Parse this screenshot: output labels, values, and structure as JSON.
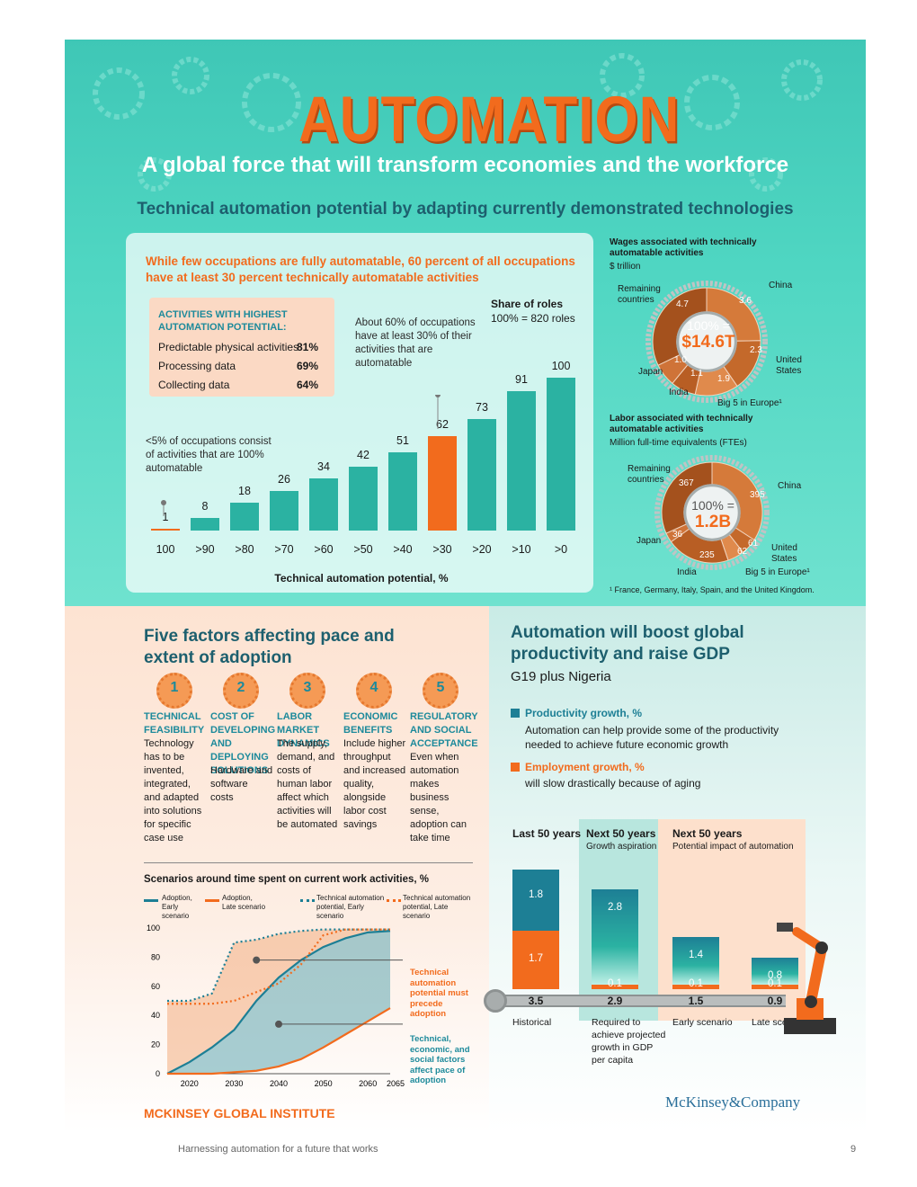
{
  "header": {
    "title": "AUTOMATION",
    "subtitle": "A global force that will transform economies and the workforce",
    "section_title": "Technical automation potential by adapting currently demonstrated technologies"
  },
  "occupations_card": {
    "headline": "While few occupations are fully automatable, 60 percent of all occupations have at least 30 percent technically automatable activities",
    "activities": {
      "title": "ACTIVITIES WITH HIGHEST AUTOMATION POTENTIAL:",
      "rows": [
        {
          "label": "Predictable physical activities",
          "value": "81%"
        },
        {
          "label": "Processing data",
          "value": "69%"
        },
        {
          "label": "Collecting data",
          "value": "64%"
        }
      ]
    },
    "annotation_60": "About 60% of occupations have at least 30% of their activities that are automatable",
    "annotation_5": "<5% of occupations consist of activities that are 100% automatable",
    "share_title": "Share of roles",
    "share_note": "100% = 820 roles",
    "xlabel": "Technical automation potential, %"
  },
  "chart_data": [
    {
      "type": "bar",
      "categories": [
        "100",
        ">90",
        ">80",
        ">70",
        ">60",
        ">50",
        ">40",
        ">30",
        ">20",
        ">10",
        ">0"
      ],
      "values": [
        1,
        8,
        18,
        26,
        34,
        42,
        51,
        62,
        73,
        91,
        100
      ],
      "highlight": [
        "100",
        ">30"
      ],
      "xlabel": "Technical automation potential, %",
      "ylabel": "Share of roles",
      "ylim": [
        0,
        100
      ]
    },
    {
      "type": "pie",
      "title": "Wages associated with technically automatable activities",
      "unit": "$ trillion",
      "total_label": "100% =",
      "total": "$14.6T",
      "slices": [
        {
          "name": "China",
          "value": 3.6
        },
        {
          "name": "United States",
          "value": 2.3
        },
        {
          "name": "Big 5 in Europe¹",
          "value": 1.9
        },
        {
          "name": "India",
          "value": 1.1
        },
        {
          "name": "Japan",
          "value": 1.0
        },
        {
          "name": "Remaining countries",
          "value": 4.7
        }
      ]
    },
    {
      "type": "pie",
      "title": "Labor associated with technically automatable activities",
      "unit": "Million full-time equivalents (FTEs)",
      "total_label": "100% =",
      "total": "1.2B",
      "slices": [
        {
          "name": "China",
          "value": 395
        },
        {
          "name": "United States",
          "value": 61
        },
        {
          "name": "Big 5 in Europe¹",
          "value": 62
        },
        {
          "name": "India",
          "value": 235
        },
        {
          "name": "Japan",
          "value": 36
        },
        {
          "name": "Remaining countries",
          "value": 367
        }
      ]
    },
    {
      "type": "line",
      "title": "Scenarios around time spent on current work activities, %",
      "x_ticks": [
        "2020",
        "2030",
        "2040",
        "2050",
        "2060",
        "2065"
      ],
      "y_ticks": [
        "0",
        "20",
        "40",
        "60",
        "80",
        "100"
      ],
      "ylim": [
        0,
        100
      ],
      "series": [
        {
          "name": "Adoption, Early scenario",
          "color": "#1d7f95",
          "style": "solid",
          "x": [
            2015,
            2020,
            2025,
            2030,
            2035,
            2040,
            2045,
            2050,
            2055,
            2060,
            2065
          ],
          "y": [
            0,
            8,
            18,
            30,
            50,
            66,
            78,
            87,
            93,
            97,
            98
          ]
        },
        {
          "name": "Adoption, Late scenario",
          "color": "#f26b1d",
          "style": "solid",
          "x": [
            2015,
            2020,
            2025,
            2030,
            2035,
            2040,
            2045,
            2050,
            2055,
            2060,
            2065
          ],
          "y": [
            0,
            0,
            0,
            1,
            2,
            5,
            10,
            18,
            27,
            36,
            45
          ]
        },
        {
          "name": "Technical automation potential, Early scenario",
          "color": "#1d7f95",
          "style": "dotted",
          "x": [
            2015,
            2020,
            2025,
            2030,
            2035,
            2040,
            2045,
            2050,
            2055,
            2060,
            2065
          ],
          "y": [
            50,
            50,
            55,
            90,
            92,
            96,
            98,
            99,
            99,
            99,
            99
          ]
        },
        {
          "name": "Technical automation potential, Late scenario",
          "color": "#f26b1d",
          "style": "dotted",
          "x": [
            2015,
            2020,
            2025,
            2030,
            2035,
            2040,
            2045,
            2050,
            2055,
            2060,
            2065
          ],
          "y": [
            48,
            48,
            48,
            50,
            56,
            62,
            75,
            95,
            99,
            99,
            99
          ]
        }
      ]
    },
    {
      "type": "bar",
      "title": "Automation will boost global productivity and raise GDP",
      "categories": [
        "Historical",
        "Required to achieve projected growth in GDP per capita",
        "Early scenario",
        "Late scenario"
      ],
      "series": [
        {
          "name": "Employment growth, %",
          "values": [
            1.7,
            0.1,
            0.1,
            0.1
          ]
        },
        {
          "name": "Productivity growth, %",
          "values": [
            1.8,
            2.8,
            1.4,
            0.8
          ]
        }
      ],
      "totals": [
        3.5,
        2.9,
        1.5,
        0.9
      ]
    }
  ],
  "wages_pie": {
    "title": "Wages associated with technically automatable activities",
    "unit": "$ trillion",
    "total_label": "100% =",
    "total": "$14.6T",
    "labels": {
      "remaining": "Remaining countries",
      "china": "China",
      "us": "United States",
      "big5": "Big 5 in Europe¹",
      "india": "India",
      "japan": "Japan"
    },
    "values": {
      "remaining": "4.7",
      "china": "3.6",
      "us": "2.3",
      "big5": "1.9",
      "india": "1.1",
      "japan": "1.0"
    }
  },
  "labor_pie": {
    "title": "Labor associated with technically automatable activities",
    "unit": "Million full-time equivalents (FTEs)",
    "total_label": "100% =",
    "total": "1.2B",
    "labels": {
      "remaining": "Remaining countries",
      "china": "China",
      "us": "United States",
      "big5": "Big 5 in Europe¹",
      "india": "India",
      "japan": "Japan"
    },
    "values": {
      "remaining": "367",
      "china": "395",
      "us": "61",
      "big5": "62",
      "india": "235",
      "japan": "36"
    },
    "footnote": "¹ France, Germany, Italy, Spain, and the United Kingdom."
  },
  "factors": {
    "title": "Five factors affecting pace and extent of adoption",
    "items": [
      {
        "num": "1",
        "title": "TECHNICAL FEASIBILITY",
        "text": "Technology has to be invented, integrated, and adapted into solutions for specific case use"
      },
      {
        "num": "2",
        "title": "COST OF DEVELOPING AND DEPLOYING SOLUTIONS",
        "text": "Hardware and software costs"
      },
      {
        "num": "3",
        "title": "LABOR MARKET DYNAMICS",
        "text": "The supply, demand, and costs of human labor affect which activities will be automated"
      },
      {
        "num": "4",
        "title": "ECONOMIC BENEFITS",
        "text": "Include higher throughput and increased quality, alongside labor cost savings"
      },
      {
        "num": "5",
        "title": "REGULATORY AND SOCIAL ACCEPTANCE",
        "text": "Even when automation makes business sense, adoption can take time"
      }
    ]
  },
  "scenarios": {
    "title": "Scenarios around time spent on current work activities, %",
    "legend": [
      "Adoption, Early scenario",
      "Adoption, Late scenario",
      "Technical automation potential, Early scenario",
      "Technical automation potential, Late scenario"
    ],
    "annotation_1": "Technical automation potential must precede adoption",
    "annotation_2": "Technical, economic, and social factors affect pace of adoption"
  },
  "gdp": {
    "title": "Automation will boost global productivity and raise GDP",
    "subtitle": "G19 plus Nigeria",
    "productivity_label": "Productivity growth, %",
    "productivity_text": "Automation can help provide some of the productivity needed to achieve future economic growth",
    "employment_label": "Employment growth, %",
    "employment_text": "will slow drastically because of aging",
    "col1_title": "Last 50 years",
    "col2_title": "Next 50 years",
    "col2_sub": "Growth aspiration",
    "col3_title": "Next 50 years",
    "col3_sub": "Potential impact of automation",
    "bars": [
      {
        "label": "Historical",
        "productivity": "1.8",
        "employment": "1.7",
        "total": "3.5"
      },
      {
        "label": "Required to achieve projected growth in GDP per capita",
        "productivity": "2.8",
        "employment": "0.1",
        "total": "2.9"
      },
      {
        "label": "Early scenario",
        "productivity": "1.4",
        "employment": "0.1",
        "total": "1.5"
      },
      {
        "label": "Late scenario",
        "productivity": "0.8",
        "employment": "0.1",
        "total": "0.9"
      }
    ],
    "colors": {
      "productivity": "#1d7f95",
      "employment": "#f26b1d"
    }
  },
  "footer": {
    "brand_left": "MCKINSEY GLOBAL INSTITUTE",
    "brand_right": "McKinsey&Company",
    "doc_title": "Harnessing automation for a future that works",
    "page_number": "9"
  },
  "colors": {
    "orange": "#f26b1d",
    "teal": "#2bb2a2",
    "dark_teal": "#1d5f6e"
  }
}
